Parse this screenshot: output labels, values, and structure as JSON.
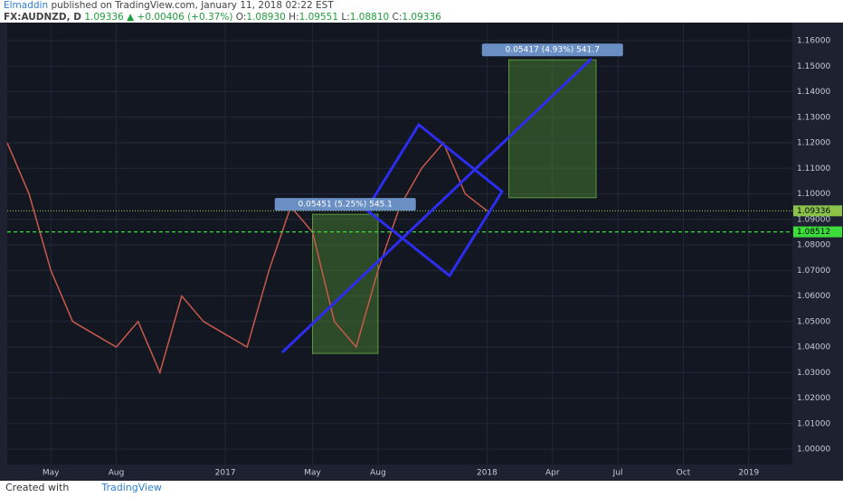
{
  "header": {
    "author": "Elmaddin",
    "published": "published on TradingView.com, January 11, 2018 02:22 EST",
    "symbol": "FX:AUDNZD, D",
    "last": "1.09336",
    "arrow": "▲",
    "change": "+0.00406 (+0.37%)",
    "open_label": "O:",
    "open": "1.08930",
    "high_label": "H:",
    "high": "1.09551",
    "low_label": "L:",
    "low": "1.08810",
    "close_label": "C:",
    "close": "1.09336"
  },
  "footer": {
    "created": "Created with",
    "brand": "TradingView"
  },
  "chart_data": {
    "type": "line",
    "x": [
      "2016-03",
      "2016-04",
      "2016-05",
      "2016-06",
      "2016-07",
      "2016-08",
      "2016-09",
      "2016-10",
      "2016-11",
      "2016-12",
      "2017-01",
      "2017-02",
      "2017-03",
      "2017-04",
      "2017-05",
      "2017-06",
      "2017-07",
      "2017-08",
      "2017-09",
      "2017-10",
      "2017-11",
      "2017-12",
      "2018-01"
    ],
    "series": [
      {
        "color": "#c85a4a",
        "values": [
          1.12,
          1.1,
          1.07,
          1.05,
          1.045,
          1.04,
          1.05,
          1.03,
          1.06,
          1.05,
          1.045,
          1.04,
          1.07,
          1.095,
          1.085,
          1.05,
          1.04,
          1.07,
          1.095,
          1.11,
          1.12,
          1.1,
          1.09336
        ]
      }
    ],
    "xlim": [
      "2016-03",
      "2019-03"
    ],
    "xticks": [
      {
        "value": "2016-05",
        "label": "May"
      },
      {
        "value": "2016-08",
        "label": "Aug"
      },
      {
        "value": "2017-01",
        "label": "2017"
      },
      {
        "value": "2017-05",
        "label": "May"
      },
      {
        "value": "2017-08",
        "label": "Aug"
      },
      {
        "value": "2018-01",
        "label": "2018"
      },
      {
        "value": "2018-04",
        "label": "Apr"
      },
      {
        "value": "2018-07",
        "label": "Jul"
      },
      {
        "value": "2018-10",
        "label": "Oct"
      },
      {
        "value": "2019-01",
        "label": "2019"
      }
    ],
    "ylim": [
      0.994,
      1.1671
    ],
    "yticks": [
      {
        "value": 1,
        "label": "1.00000"
      },
      {
        "value": 1.01,
        "label": "1.01000"
      },
      {
        "value": 1.02,
        "label": "1.02000"
      },
      {
        "value": 1.03,
        "label": "1.03000"
      },
      {
        "value": 1.04,
        "label": "1.04000"
      },
      {
        "value": 1.05,
        "label": "1.05000"
      },
      {
        "value": 1.06,
        "label": "1.06000"
      },
      {
        "value": 1.07,
        "label": "1.07000"
      },
      {
        "value": 1.08,
        "label": "1.08000"
      },
      {
        "value": 1.09,
        "label": "1.09000"
      },
      {
        "value": 1.1,
        "label": "1.10000"
      },
      {
        "value": 1.11,
        "label": "1.11000"
      },
      {
        "value": 1.12,
        "label": "1.12000"
      },
      {
        "value": 1.13,
        "label": "1.13000"
      },
      {
        "value": 1.14,
        "label": "1.14000"
      },
      {
        "value": 1.15,
        "label": "1.15000"
      },
      {
        "value": 1.16,
        "label": "1.16000"
      }
    ],
    "grid": true,
    "price_lines": [
      {
        "value": 1.09336,
        "label": "1.09336",
        "color": "#8bc34a",
        "dash": "1 2"
      },
      {
        "value": 1.08512,
        "label": "1.08512",
        "color": "#3ddc3d",
        "dash": "4 3"
      }
    ],
    "ranges": [
      {
        "x": [
          "2017-05",
          "2017-08"
        ],
        "low": 1.0375,
        "high": 1.092,
        "label": "0.05451 (5.25%) 545.1"
      },
      {
        "x": [
          "2018-02",
          "2018-06"
        ],
        "low": 1.0985,
        "high": 1.1525,
        "label": "0.05417 (4.93%) 541.7"
      }
    ]
  }
}
